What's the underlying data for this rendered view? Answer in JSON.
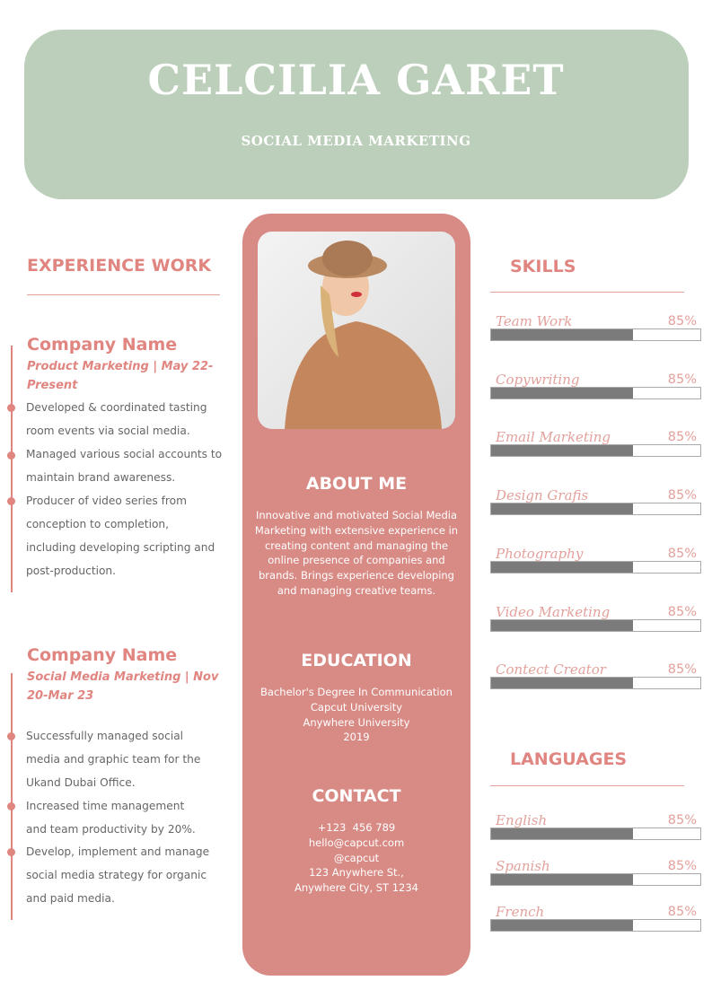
{
  "header": {
    "name": "CELCILIA GARET",
    "role": "SOCIAL MEDIA MARKETING",
    "bg": "#bccfbb"
  },
  "experience": {
    "title": "EXPERIENCE WORK",
    "jobs": [
      {
        "company": "Company Name",
        "subtitle": "Product Marketing | May 22-Present",
        "bullets": [
          "Developed & coordinated tasting room events via social media.",
          "Managed various social accounts to maintain brand awareness.",
          "Producer of video series from conception to completion, including developing scripting and post-production."
        ]
      },
      {
        "company": "Company Name",
        "subtitle": "Social Media Marketing | Nov 20-Mar 23",
        "bullets": [
          "Successfully managed social media and graphic team for the Ukand Dubai Office.",
          "Increased time management and team productivity by 20%.",
          "Develop, implement and manage social media strategy for organic and paid media."
        ]
      }
    ]
  },
  "about": {
    "title": "ABOUT ME",
    "text": "Innovative and motivated Social Media Marketing with extensive experience in creating content and managing the online presence of companies and brands. Brings experience developing and managing creative teams."
  },
  "education": {
    "title": "EDUCATION",
    "lines": [
      "Bachelor's Degree In Communication",
      "Capcut University",
      "Anywhere University",
      "2019"
    ]
  },
  "contact": {
    "title": "CONTACT",
    "lines": [
      "+123  456 789",
      "hello@capcut.com",
      "@capcut",
      "123 Anywhere St.,",
      "Anywhere City, ST 1234"
    ]
  },
  "skills": {
    "title": "SKILLS",
    "items": [
      {
        "name": "Team Work",
        "pct": "85%",
        "fill": 68
      },
      {
        "name": "Copywriting",
        "pct": "85%",
        "fill": 68
      },
      {
        "name": "Email Marketing",
        "pct": "85%",
        "fill": 68
      },
      {
        "name": "Design Grafis",
        "pct": "85%",
        "fill": 68
      },
      {
        "name": "Photography",
        "pct": "85%",
        "fill": 68
      },
      {
        "name": "Video Marketing",
        "pct": "85%",
        "fill": 68
      },
      {
        "name": "Contect Creator",
        "pct": "85%",
        "fill": 68
      }
    ]
  },
  "languages": {
    "title": "LANGUAGES",
    "items": [
      {
        "name": "English",
        "pct": "85%",
        "fill": 68
      },
      {
        "name": "Spanish",
        "pct": "85%",
        "fill": 68
      },
      {
        "name": "French",
        "pct": "85%",
        "fill": 68
      }
    ]
  },
  "colors": {
    "accent": "#e08580",
    "center_panel": "#d88a85",
    "bar": "#7b7b7b"
  }
}
